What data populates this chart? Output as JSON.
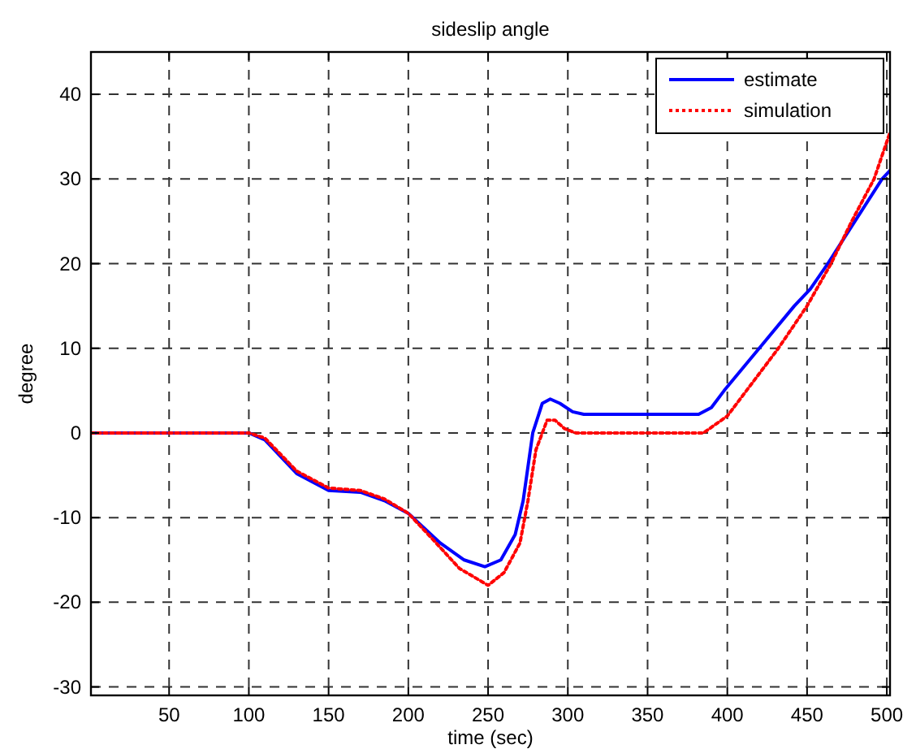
{
  "chart_data": {
    "type": "line",
    "title": "sideslip angle",
    "xlabel": "time (sec)",
    "ylabel": "degree",
    "xlim": [
      1,
      502
    ],
    "ylim": [
      -31,
      45
    ],
    "xticks": [
      50,
      100,
      150,
      200,
      250,
      300,
      350,
      400,
      450,
      500
    ],
    "yticks": [
      -30,
      -20,
      -10,
      0,
      10,
      20,
      30,
      40
    ],
    "grid": true,
    "legend": "top right",
    "series": [
      {
        "name": "estimate",
        "color": "#0000ff",
        "line_style": "solid",
        "x": [
          1,
          50,
          100,
          110,
          130,
          150,
          170,
          185,
          200,
          220,
          235,
          248,
          258,
          267,
          272,
          278,
          284,
          289,
          295,
          303,
          310,
          350,
          382,
          390,
          398,
          420,
          442,
          452,
          463,
          480,
          497,
          502
        ],
        "values": [
          0,
          0,
          0,
          -0.8,
          -4.8,
          -6.8,
          -7,
          -8,
          -9.5,
          -13,
          -15,
          -15.8,
          -15,
          -12,
          -8,
          0,
          3.5,
          4,
          3.5,
          2.5,
          2.2,
          2.2,
          2.2,
          3,
          5,
          10,
          15,
          17,
          20,
          25,
          30,
          31
        ]
      },
      {
        "name": "simulation",
        "color": "#ff0000",
        "line_style": "dotted",
        "x": [
          1,
          50,
          100,
          110,
          130,
          150,
          170,
          185,
          200,
          215,
          232,
          250,
          260,
          270,
          275,
          280,
          287,
          292,
          298,
          305,
          350,
          385,
          400,
          412,
          432,
          450,
          465,
          478,
          492,
          502
        ],
        "values": [
          0,
          0,
          0,
          -0.6,
          -4.5,
          -6.5,
          -6.8,
          -7.8,
          -9.5,
          -12.5,
          -16,
          -18,
          -16.5,
          -13,
          -8,
          -2,
          1.5,
          1.5,
          0.5,
          0,
          0,
          0,
          2,
          5,
          10,
          15,
          20,
          25,
          30,
          35.5
        ]
      }
    ]
  }
}
